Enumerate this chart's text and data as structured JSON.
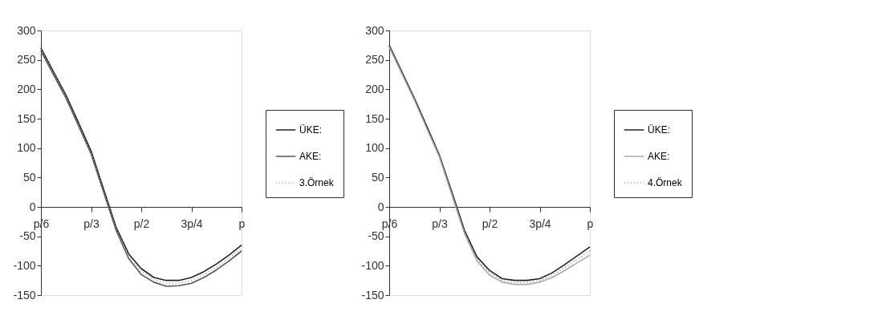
{
  "chart_data": [
    {
      "type": "line",
      "categories": [
        "p/6",
        null,
        null,
        null,
        "p/3",
        null,
        null,
        null,
        "p/2",
        null,
        null,
        null,
        "3p/4",
        null,
        null,
        null,
        "p"
      ],
      "ylim": [
        -150,
        300
      ],
      "yticks": [
        -150,
        -100,
        -50,
        0,
        50,
        100,
        150,
        200,
        250,
        300
      ],
      "grid": false,
      "legend": "right",
      "series": [
        {
          "name": "ÜKE:",
          "color": "#222222",
          "line_style": "solid",
          "values": [
            270,
            230,
            190,
            143,
            95,
            30,
            -35,
            -80,
            -105,
            -120,
            -125,
            -125,
            -120,
            -110,
            -97,
            -82,
            -65
          ]
        },
        {
          "name": "AKE:",
          "color": "#555555",
          "line_style": "solid",
          "values": [
            265,
            225,
            185,
            138,
            90,
            25,
            -40,
            -88,
            -115,
            -128,
            -135,
            -134,
            -130,
            -120,
            -107,
            -92,
            -75
          ]
        },
        {
          "name": "3.Örnek",
          "color": "#999999",
          "line_style": "dotted",
          "values": [
            268,
            228,
            188,
            140,
            92,
            27,
            -38,
            -84,
            -110,
            -124,
            -130,
            -130,
            -125,
            -115,
            -102,
            -87,
            -70
          ]
        }
      ]
    },
    {
      "type": "line",
      "categories": [
        "p/6",
        null,
        null,
        null,
        "p/3",
        null,
        null,
        null,
        "p/2",
        null,
        null,
        null,
        "3p/4",
        null,
        null,
        null,
        "p"
      ],
      "ylim": [
        -150,
        300
      ],
      "yticks": [
        -150,
        -100,
        -50,
        0,
        50,
        100,
        150,
        200,
        250,
        300
      ],
      "grid": false,
      "legend": "right",
      "series": [
        {
          "name": "ÜKE:",
          "color": "#222222",
          "line_style": "solid",
          "values": [
            275,
            230,
            185,
            137,
            88,
            25,
            -40,
            -85,
            -108,
            -122,
            -125,
            -125,
            -122,
            -112,
            -98,
            -83,
            -68
          ]
        },
        {
          "name": "AKE:",
          "color": "#aaaaaa",
          "line_style": "solid",
          "values": [
            272,
            227,
            182,
            133,
            85,
            20,
            -45,
            -92,
            -116,
            -128,
            -132,
            -132,
            -128,
            -120,
            -108,
            -95,
            -82
          ]
        },
        {
          "name": "4.Örnek",
          "color": "#888888",
          "line_style": "dotted",
          "values": [
            273,
            228,
            183,
            135,
            86,
            22,
            -43,
            -89,
            -112,
            -125,
            -129,
            -129,
            -125,
            -116,
            -103,
            -89,
            -75
          ]
        }
      ]
    }
  ]
}
